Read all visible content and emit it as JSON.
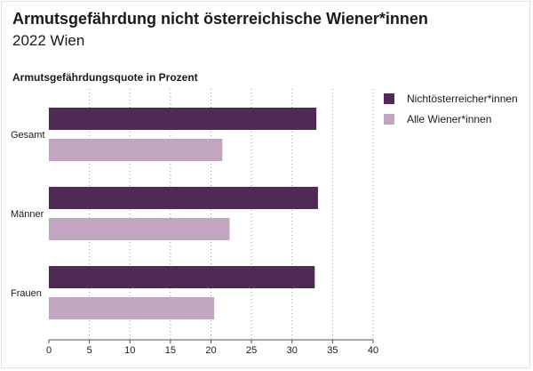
{
  "title": "Armutsgefährdung nicht österreichische Wiener*innen",
  "subtitle": "2022 Wien",
  "chart_data": {
    "type": "bar",
    "orientation": "horizontal",
    "ylabel": "Armutsgefährdungsquote in Prozent",
    "categories": [
      "Gesamt",
      "Männer",
      "Frauen"
    ],
    "series": [
      {
        "name": "Nichtösterreicher*innen",
        "color": "#4f2a55",
        "values": [
          33,
          33.2,
          32.8
        ]
      },
      {
        "name": "Alle Wiener*innen",
        "color": "#c1a6c1",
        "values": [
          21.4,
          22.3,
          20.4
        ]
      }
    ],
    "xlim": [
      0,
      40
    ],
    "xticks": [
      0,
      5,
      10,
      15,
      20,
      25,
      30,
      35,
      40
    ],
    "grid": true,
    "legend_position": "top-right"
  }
}
